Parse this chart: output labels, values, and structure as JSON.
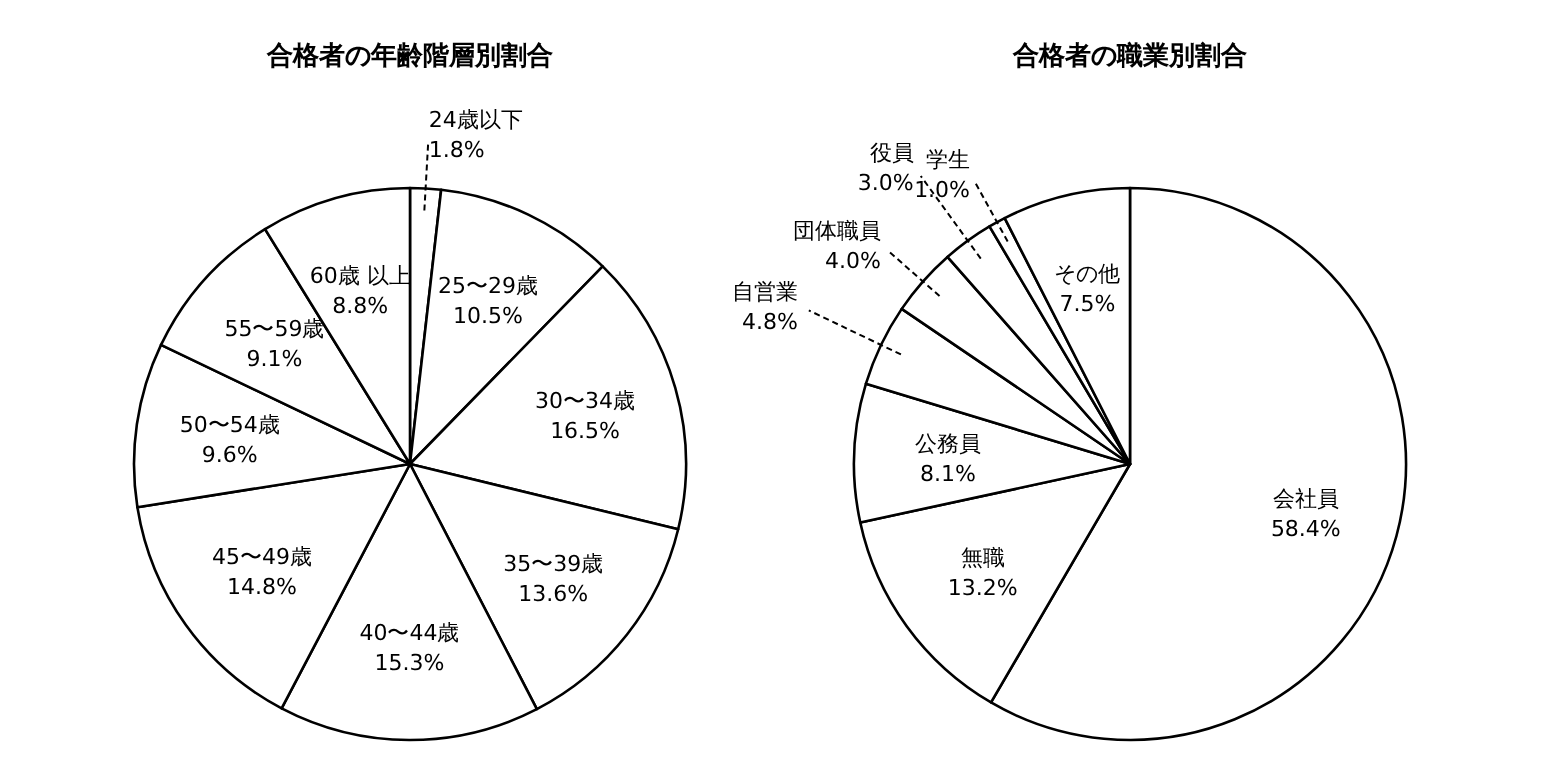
{
  "chart_data": [
    {
      "type": "pie",
      "title": "合格者の年齢階層別割合",
      "categories": [
        "24歳以下",
        "25〜29歳",
        "30〜34歳",
        "35〜39歳",
        "40〜44歳",
        "45〜49歳",
        "50〜54歳",
        "55〜59歳",
        "60歳 以上"
      ],
      "values": [
        1.8,
        10.5,
        16.5,
        13.6,
        15.3,
        14.8,
        9.6,
        9.1,
        8.8
      ],
      "colors": [
        "#ffffff",
        "#ffffff",
        "#ffffff",
        "#ffffff",
        "#ffffff",
        "#ffffff",
        "#ffffff",
        "#ffffff",
        "#ffffff"
      ],
      "value_labels": [
        "1.8%",
        "10.5%",
        "16.5%",
        "13.6%",
        "15.3%",
        "14.8%",
        "9.6%",
        "9.1%",
        "8.8%"
      ]
    },
    {
      "type": "pie",
      "title": "合格者の職業別割合",
      "categories": [
        "会社員",
        "無職",
        "公務員",
        "自営業",
        "団体職員",
        "役員",
        "学生",
        "その他"
      ],
      "values": [
        58.4,
        13.2,
        8.1,
        4.8,
        4.0,
        3.0,
        1.0,
        7.5
      ],
      "colors": [
        "#ffffff",
        "#ffffff",
        "#ffffff",
        "#ffffff",
        "#ffffff",
        "#ffffff",
        "#ffffff",
        "#ffffff"
      ],
      "value_labels": [
        "58.4%",
        "13.2%",
        "8.1%",
        "4.8%",
        "4.0%",
        "3.0%",
        "1.0%",
        "7.5%"
      ]
    }
  ]
}
